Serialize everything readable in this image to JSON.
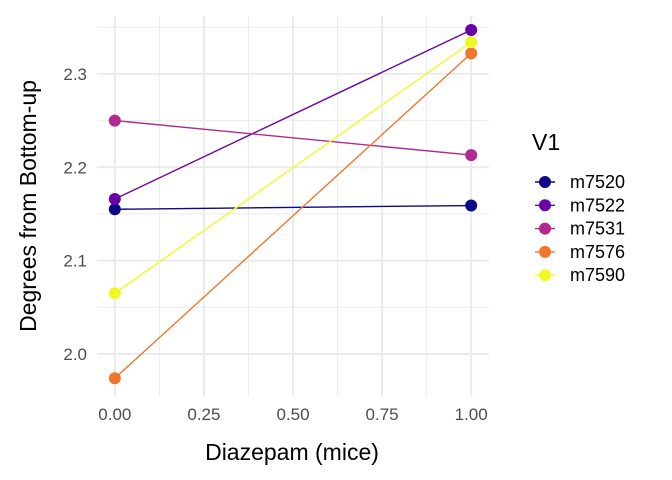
{
  "chart_data": {
    "type": "line",
    "title": "",
    "xlabel": "Diazepam (mice)",
    "ylabel": "Degrees from Bottom-up",
    "x": [
      0,
      1
    ],
    "xlim": [
      -0.05,
      1.05
    ],
    "ylim": [
      1.955,
      2.362
    ],
    "x_ticks": [
      0,
      0.25,
      0.5,
      0.75,
      1
    ],
    "x_tick_labels": [
      "0.00",
      "0.25",
      "0.50",
      "0.75",
      "1.00"
    ],
    "y_ticks": [
      2.0,
      2.1,
      2.2,
      2.3
    ],
    "y_tick_labels": [
      "2.0",
      "2.1",
      "2.2",
      "2.3"
    ],
    "grid": true,
    "legend_title": "V1",
    "legend_position": "right",
    "series": [
      {
        "name": "m7520",
        "color": "#0d0887",
        "values": [
          2.155,
          2.159
        ]
      },
      {
        "name": "m7522",
        "color": "#6a00a8",
        "values": [
          2.166,
          2.347
        ]
      },
      {
        "name": "m7531",
        "color": "#b12a90",
        "values": [
          2.25,
          2.213
        ]
      },
      {
        "name": "m7576",
        "color": "#f0762d",
        "values": [
          1.974,
          2.322
        ]
      },
      {
        "name": "m7590",
        "color": "#f0f921",
        "values": [
          2.065,
          2.334
        ]
      }
    ]
  }
}
